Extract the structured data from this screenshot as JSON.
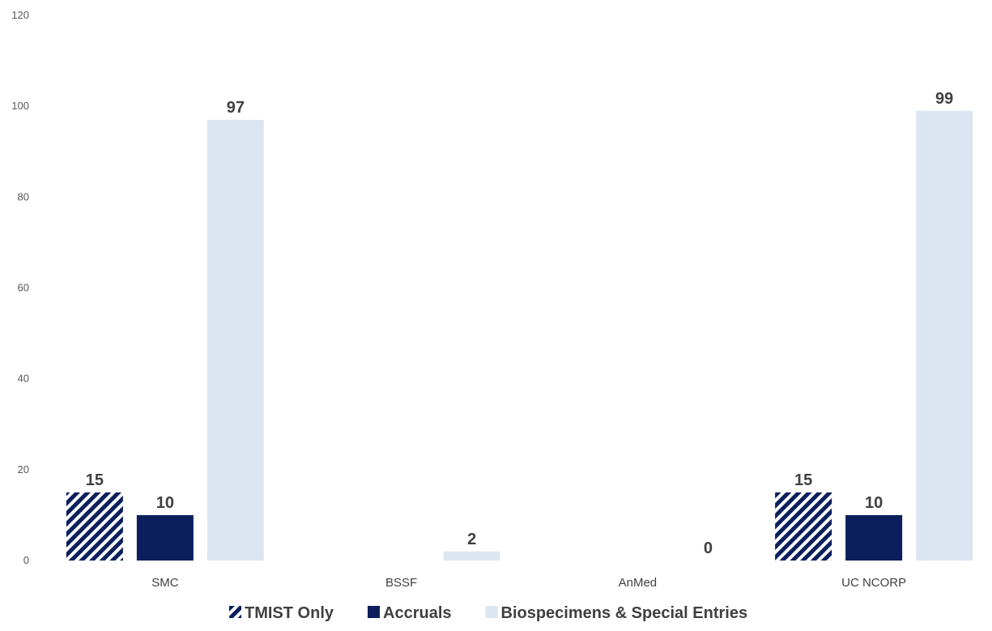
{
  "chart_data": {
    "type": "bar",
    "categories": [
      "SMC",
      "BSSF",
      "AnMed",
      "UC NCORP"
    ],
    "series": [
      {
        "name": "TMIST Only",
        "values": [
          15,
          null,
          null,
          15
        ],
        "color": "#0a1f5c",
        "pattern": "diagonal-hatch"
      },
      {
        "name": "Accruals",
        "values": [
          10,
          null,
          null,
          10
        ],
        "color": "#0a1f5c"
      },
      {
        "name": "Biospecimens & Special Entries",
        "values": [
          97,
          2,
          0,
          99
        ],
        "color": "#dce6f2"
      }
    ],
    "ylim": [
      0,
      120
    ],
    "yticks": [
      0,
      20,
      40,
      60,
      80,
      100,
      120
    ],
    "grid": false,
    "legend_position": "bottom"
  }
}
